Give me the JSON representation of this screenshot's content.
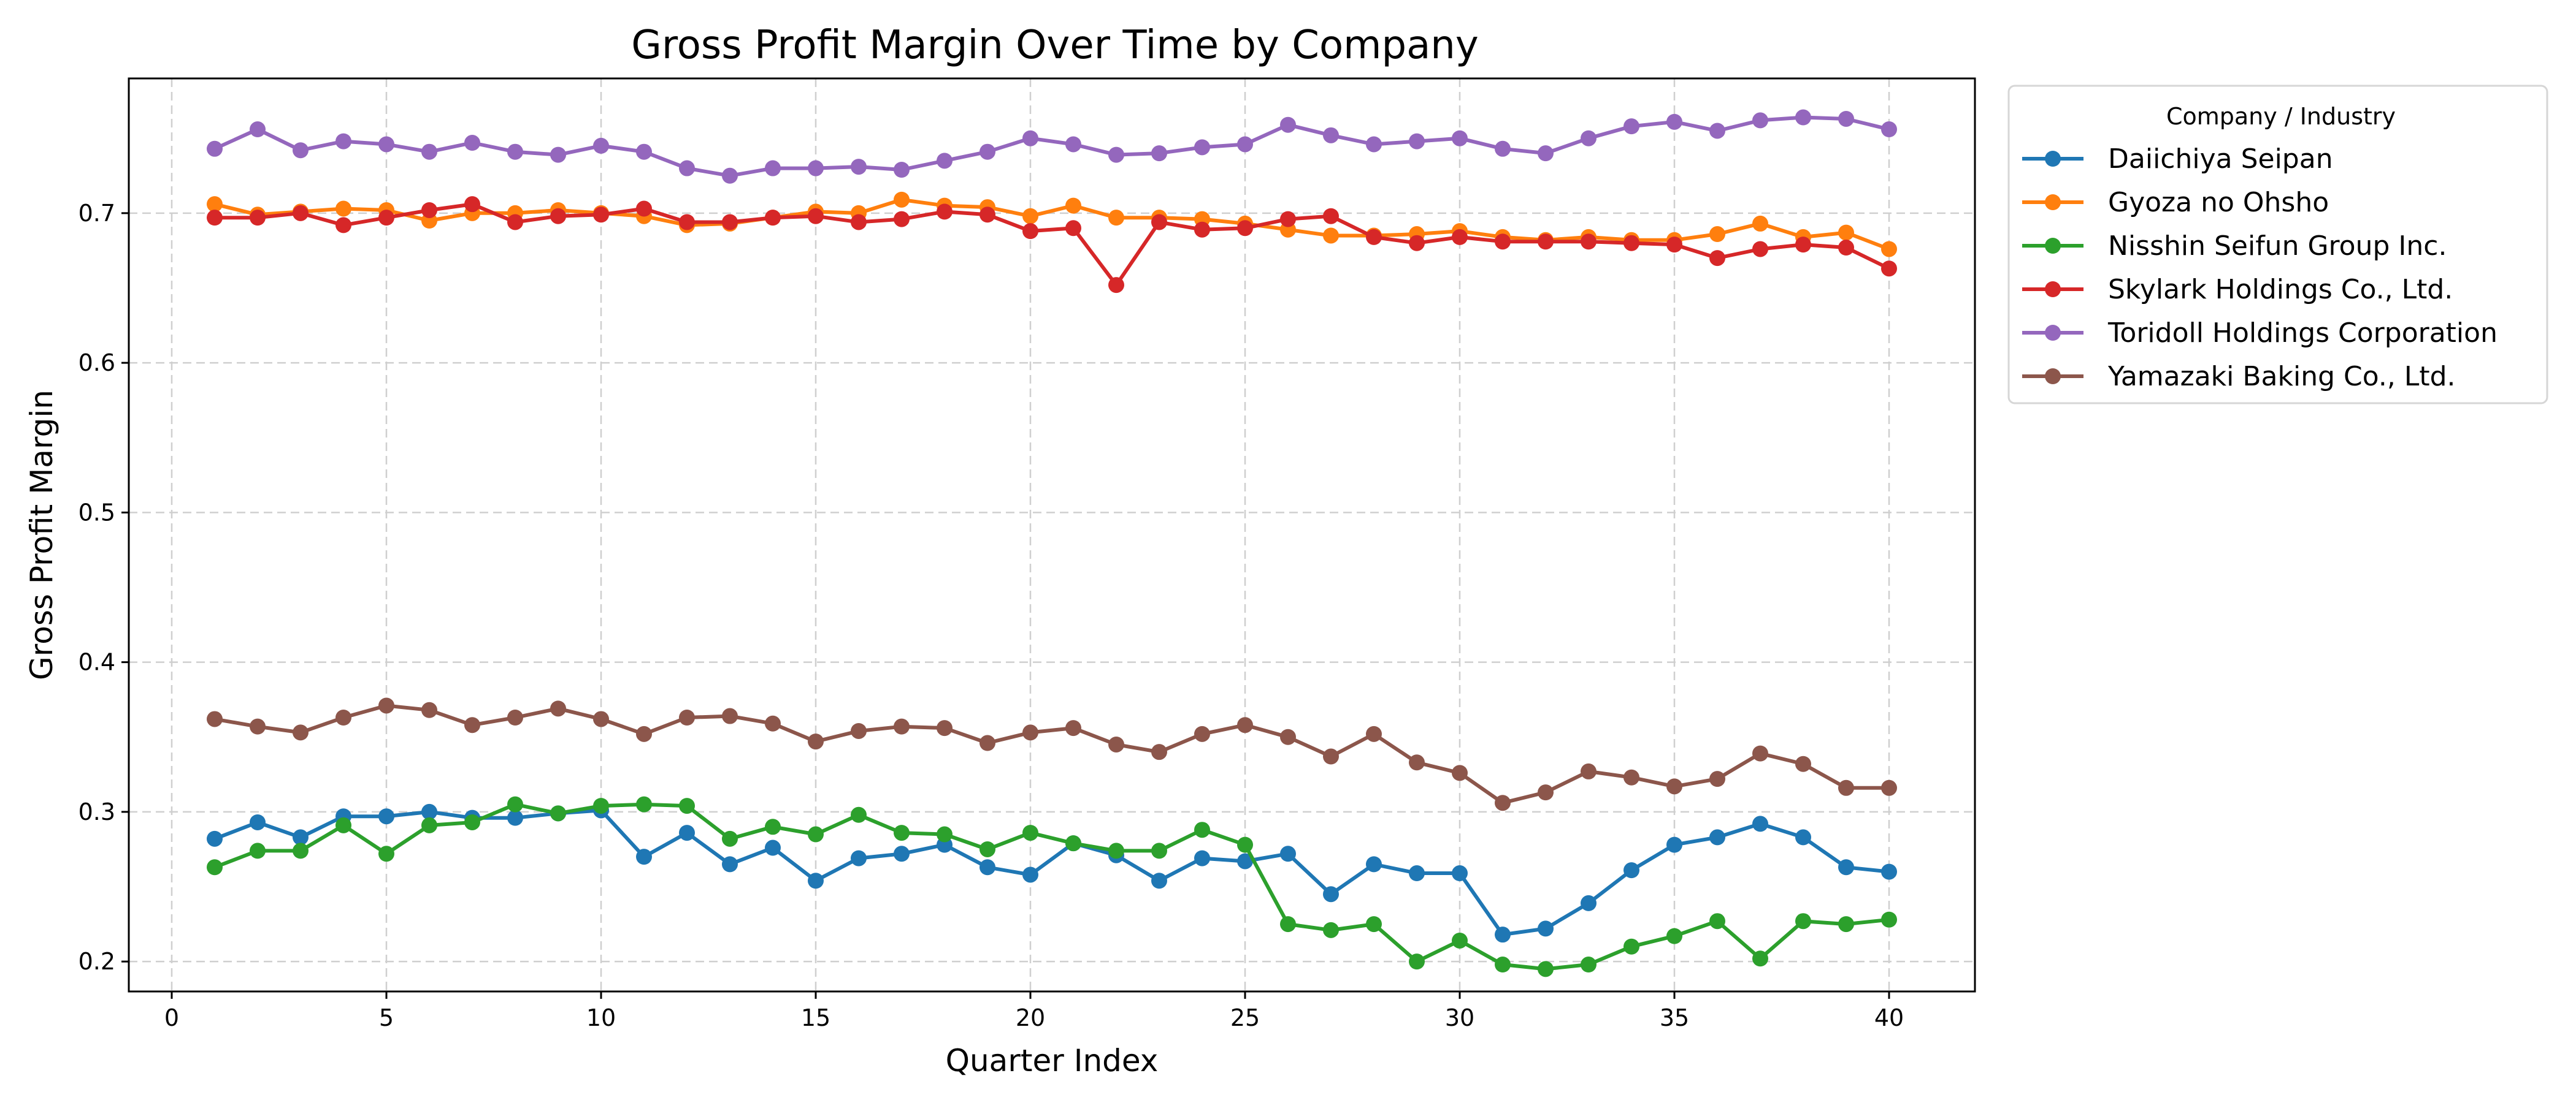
{
  "chart_data": {
    "type": "line",
    "title": "Gross Profit Margin Over Time by Company",
    "xlabel": "Quarter Index",
    "ylabel": "Gross Profit Margin",
    "xlim": [
      -1,
      42
    ],
    "ylim": [
      0.18,
      0.79
    ],
    "xticks": [
      0,
      5,
      10,
      15,
      20,
      25,
      30,
      35,
      40
    ],
    "yticks": [
      0.2,
      0.3,
      0.4,
      0.5,
      0.6,
      0.7
    ],
    "grid": true,
    "legend": {
      "title": "Company / Industry",
      "placement": "outside-right-top"
    },
    "x": [
      1,
      2,
      3,
      4,
      5,
      6,
      7,
      8,
      9,
      10,
      11,
      12,
      13,
      14,
      15,
      16,
      17,
      18,
      19,
      20,
      21,
      22,
      23,
      24,
      25,
      26,
      27,
      28,
      29,
      30,
      31,
      32,
      33,
      34,
      35,
      36,
      37,
      38,
      39,
      40
    ],
    "series": [
      {
        "name": "Daiichiya Seipan",
        "color": "#1f77b4",
        "values": [
          0.282,
          0.293,
          0.283,
          0.297,
          0.297,
          0.3,
          0.296,
          0.296,
          0.299,
          0.301,
          0.27,
          0.286,
          0.265,
          0.276,
          0.254,
          0.269,
          0.272,
          0.278,
          0.263,
          0.258,
          0.279,
          0.271,
          0.254,
          0.269,
          0.267,
          0.272,
          0.245,
          0.265,
          0.259,
          0.259,
          0.218,
          0.222,
          0.239,
          0.261,
          0.278,
          0.283,
          0.292,
          0.283,
          0.263,
          0.26
        ]
      },
      {
        "name": "Gyoza no Ohsho",
        "color": "#ff7f0e",
        "values": [
          0.706,
          0.699,
          0.701,
          0.703,
          0.702,
          0.695,
          0.7,
          0.7,
          0.702,
          0.7,
          0.698,
          0.692,
          0.693,
          0.697,
          0.701,
          0.7,
          0.709,
          0.705,
          0.704,
          0.698,
          0.705,
          0.697,
          0.697,
          0.696,
          0.693,
          0.689,
          0.685,
          0.685,
          0.686,
          0.688,
          0.684,
          0.682,
          0.684,
          0.682,
          0.682,
          0.686,
          0.693,
          0.684,
          0.687,
          0.676
        ]
      },
      {
        "name": "Nisshin Seifun Group Inc.",
        "color": "#2ca02c",
        "values": [
          0.263,
          0.274,
          0.274,
          0.291,
          0.272,
          0.291,
          0.293,
          0.305,
          0.299,
          0.304,
          0.305,
          0.304,
          0.282,
          0.29,
          0.285,
          0.298,
          0.286,
          0.285,
          0.275,
          0.286,
          0.279,
          0.274,
          0.274,
          0.288,
          0.278,
          0.225,
          0.221,
          0.225,
          0.2,
          0.214,
          0.198,
          0.195,
          0.198,
          0.21,
          0.217,
          0.227,
          0.202,
          0.227,
          0.225,
          0.228
        ]
      },
      {
        "name": "Skylark Holdings Co., Ltd.",
        "color": "#d62728",
        "values": [
          0.697,
          0.697,
          0.7,
          0.692,
          0.697,
          0.702,
          0.706,
          0.694,
          0.698,
          0.699,
          0.703,
          0.694,
          0.694,
          0.697,
          0.698,
          0.694,
          0.696,
          0.701,
          0.699,
          0.688,
          0.69,
          0.652,
          0.694,
          0.689,
          0.69,
          0.696,
          0.698,
          0.684,
          0.68,
          0.684,
          0.681,
          0.681,
          0.681,
          0.68,
          0.679,
          0.67,
          0.676,
          0.679,
          0.677,
          0.663
        ]
      },
      {
        "name": "Toridoll Holdings Corporation",
        "color": "#9467bd",
        "values": [
          0.743,
          0.756,
          0.742,
          0.748,
          0.746,
          0.741,
          0.747,
          0.741,
          0.739,
          0.745,
          0.741,
          0.73,
          0.725,
          0.73,
          0.73,
          0.731,
          0.729,
          0.735,
          0.741,
          0.75,
          0.746,
          0.739,
          0.74,
          0.744,
          0.746,
          0.759,
          0.752,
          0.746,
          0.748,
          0.75,
          0.743,
          0.74,
          0.75,
          0.758,
          0.761,
          0.755,
          0.762,
          0.764,
          0.763,
          0.756
        ]
      },
      {
        "name": "Yamazaki Baking Co., Ltd.",
        "color": "#8c564b",
        "values": [
          0.362,
          0.357,
          0.353,
          0.363,
          0.371,
          0.368,
          0.358,
          0.363,
          0.369,
          0.362,
          0.352,
          0.363,
          0.364,
          0.359,
          0.347,
          0.354,
          0.357,
          0.356,
          0.346,
          0.353,
          0.356,
          0.345,
          0.34,
          0.352,
          0.358,
          0.35,
          0.337,
          0.352,
          0.333,
          0.326,
          0.306,
          0.313,
          0.327,
          0.323,
          0.317,
          0.322,
          0.339,
          0.332,
          0.316,
          0.316
        ]
      }
    ]
  }
}
